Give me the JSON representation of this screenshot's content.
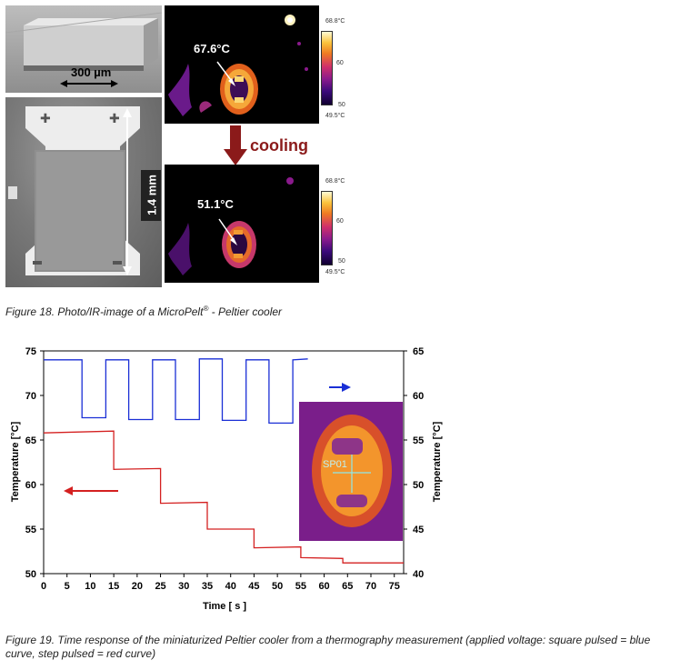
{
  "figure18": {
    "scale_bar": "300 µm",
    "length_label": "1.4 mm",
    "temp_before": "67.6°C",
    "temp_after": "51.1°C",
    "arrow_label": "cooling",
    "colorbar": {
      "max": "68.8°C",
      "mid_high": "60",
      "mid_low": "50",
      "min": "49.5°C"
    },
    "caption_main": "Figure 18. Photo/IR-image of a MicroPelt",
    "caption_reg": "®",
    "caption_tail": " - Peltier cooler"
  },
  "chart_data": {
    "type": "line",
    "xlabel": "Time [ s ]",
    "ylabel": "Temperature [°C]",
    "y2label": "Temperature [°C]",
    "xlim": [
      0,
      77
    ],
    "ylim": [
      50,
      75
    ],
    "y2lim": [
      40,
      65
    ],
    "xticks": [
      "0",
      "5",
      "10",
      "15",
      "20",
      "25",
      "30",
      "35",
      "40",
      "45",
      "50",
      "55",
      "60",
      "65",
      "70",
      "75"
    ],
    "yticks": [
      "50",
      "55",
      "60",
      "65",
      "70",
      "75"
    ],
    "y2ticks": [
      "40",
      "45",
      "50",
      "55",
      "60",
      "65"
    ],
    "inset_label": "SP01",
    "series": [
      {
        "color": "#1a2fd6",
        "axis": "right",
        "points": [
          [
            0,
            64.0
          ],
          [
            8.2,
            64.0
          ],
          [
            8.2,
            57.5
          ],
          [
            13.3,
            57.5
          ],
          [
            13.3,
            64.0
          ],
          [
            18.2,
            64.0
          ],
          [
            18.2,
            57.3
          ],
          [
            23.3,
            57.3
          ],
          [
            23.3,
            64.0
          ],
          [
            28.2,
            64.0
          ],
          [
            28.2,
            57.3
          ],
          [
            33.3,
            57.3
          ],
          [
            33.3,
            64.1
          ],
          [
            38.2,
            64.1
          ],
          [
            38.2,
            57.2
          ],
          [
            43.3,
            57.2
          ],
          [
            43.3,
            64.0
          ],
          [
            48.2,
            64.0
          ],
          [
            48.2,
            56.9
          ],
          [
            53.3,
            56.9
          ],
          [
            53.3,
            64.0
          ],
          [
            56.5,
            64.1
          ]
        ]
      },
      {
        "color": "#d42020",
        "axis": "left",
        "points": [
          [
            0,
            65.8
          ],
          [
            15,
            66.0
          ],
          [
            15,
            61.7
          ],
          [
            25,
            61.8
          ],
          [
            25,
            57.9
          ],
          [
            35,
            58.0
          ],
          [
            35,
            55.0
          ],
          [
            45,
            55.0
          ],
          [
            45,
            52.9
          ],
          [
            55,
            53.0
          ],
          [
            55,
            51.8
          ],
          [
            64,
            51.7
          ],
          [
            64,
            51.2
          ],
          [
            77,
            51.2
          ]
        ]
      }
    ]
  },
  "figure19": {
    "caption": "Figure 19. Time response of the miniaturized Peltier cooler from a thermography measurement (applied voltage: square pulsed = blue curve, step pulsed = red curve)"
  }
}
